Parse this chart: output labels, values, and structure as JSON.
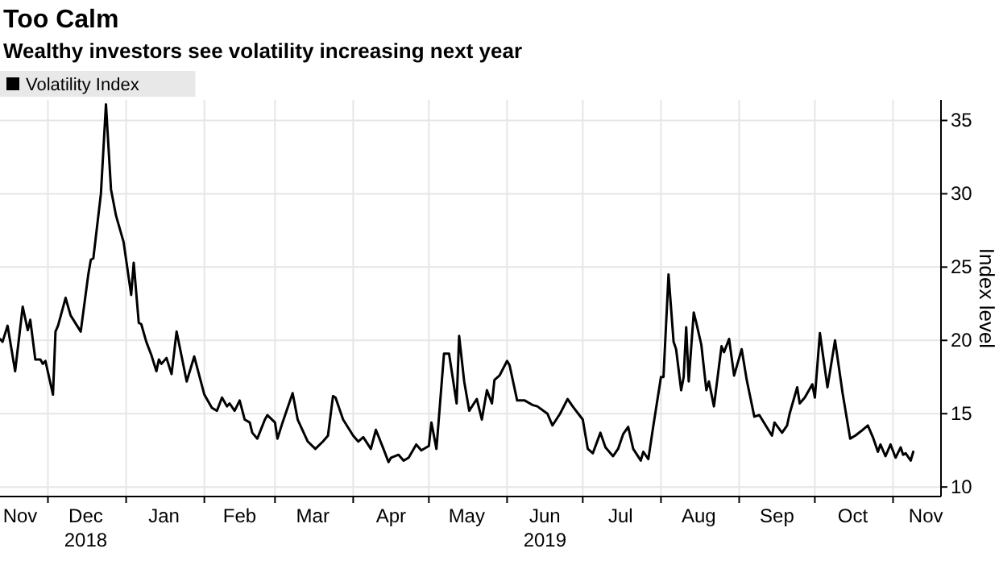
{
  "chart_data": {
    "type": "line",
    "title": "Too Calm",
    "subtitle": "Wealthy investors see volatility increasing next year",
    "ylabel": "Index level",
    "legend": "top left",
    "grid": true,
    "line_style": "solid",
    "xlim": [
      "2018-11-12",
      "2019-11-20"
    ],
    "ylim": [
      9.35,
      36.4
    ],
    "yticks": [
      10,
      15,
      20,
      25,
      30,
      35
    ],
    "xticks": [
      {
        "value": "2018-11-20",
        "label": "Nov"
      },
      {
        "value": "2018-12-01",
        "label": null
      },
      {
        "value": "2018-12-16",
        "label": "Dec\n2018"
      },
      {
        "value": "2019-01-01",
        "label": null
      },
      {
        "value": "2019-01-16",
        "label": "Jan"
      },
      {
        "value": "2019-02-01",
        "label": null
      },
      {
        "value": "2019-02-15",
        "label": "Feb"
      },
      {
        "value": "2019-03-01",
        "label": null
      },
      {
        "value": "2019-03-16",
        "label": "Mar"
      },
      {
        "value": "2019-04-01",
        "label": null
      },
      {
        "value": "2019-04-16",
        "label": "Apr"
      },
      {
        "value": "2019-05-01",
        "label": null
      },
      {
        "value": "2019-05-16",
        "label": "May"
      },
      {
        "value": "2019-06-01",
        "label": null
      },
      {
        "value": "2019-06-16",
        "label": "Jun\n2019"
      },
      {
        "value": "2019-07-01",
        "label": null
      },
      {
        "value": "2019-07-16",
        "label": "Jul"
      },
      {
        "value": "2019-08-01",
        "label": null
      },
      {
        "value": "2019-08-16",
        "label": "Aug"
      },
      {
        "value": "2019-09-01",
        "label": null
      },
      {
        "value": "2019-09-16",
        "label": "Sep"
      },
      {
        "value": "2019-10-01",
        "label": null
      },
      {
        "value": "2019-10-16",
        "label": "Oct"
      },
      {
        "value": "2019-11-01",
        "label": null
      },
      {
        "value": "2019-11-14",
        "label": "Nov"
      }
    ],
    "x": [
      "2018-11-12",
      "2018-11-13",
      "2018-11-15",
      "2018-11-18",
      "2018-11-21",
      "2018-11-23",
      "2018-11-24",
      "2018-11-26",
      "2018-11-28",
      "2018-11-29",
      "2018-11-30",
      "2018-12-03",
      "2018-12-04",
      "2018-12-05",
      "2018-12-08",
      "2018-12-10",
      "2018-12-14",
      "2018-12-17",
      "2018-12-18",
      "2018-12-19",
      "2018-12-22",
      "2018-12-24",
      "2018-12-26",
      "2018-12-28",
      "2018-12-31",
      "2019-01-03",
      "2019-01-04",
      "2019-01-06",
      "2019-01-07",
      "2019-01-09",
      "2019-01-11",
      "2019-01-13",
      "2019-01-14",
      "2019-01-15",
      "2019-01-17",
      "2019-01-19",
      "2019-01-21",
      "2019-01-23",
      "2019-01-25",
      "2019-01-28",
      "2019-02-01",
      "2019-02-04",
      "2019-02-06",
      "2019-02-08",
      "2019-02-10",
      "2019-02-11",
      "2019-02-13",
      "2019-02-15",
      "2019-02-17",
      "2019-02-19",
      "2019-02-20",
      "2019-02-22",
      "2019-02-25",
      "2019-02-26",
      "2019-03-01",
      "2019-03-02",
      "2019-03-04",
      "2019-03-08",
      "2019-03-10",
      "2019-03-14",
      "2019-03-17",
      "2019-03-20",
      "2019-03-22",
      "2019-03-24",
      "2019-03-25",
      "2019-03-28",
      "2019-04-01",
      "2019-04-03",
      "2019-04-05",
      "2019-04-08",
      "2019-04-10",
      "2019-04-13",
      "2019-04-15",
      "2019-04-16",
      "2019-04-19",
      "2019-04-21",
      "2019-04-23",
      "2019-04-26",
      "2019-04-28",
      "2019-05-01",
      "2019-05-02",
      "2019-05-04",
      "2019-05-07",
      "2019-05-09",
      "2019-05-12",
      "2019-05-13",
      "2019-05-15",
      "2019-05-17",
      "2019-05-20",
      "2019-05-22",
      "2019-05-24",
      "2019-05-26",
      "2019-05-27",
      "2019-05-29",
      "2019-06-01",
      "2019-06-02",
      "2019-06-05",
      "2019-06-08",
      "2019-06-11",
      "2019-06-13",
      "2019-06-17",
      "2019-06-19",
      "2019-06-22",
      "2019-06-25",
      "2019-06-27",
      "2019-07-01",
      "2019-07-03",
      "2019-07-05",
      "2019-07-08",
      "2019-07-10",
      "2019-07-13",
      "2019-07-15",
      "2019-07-17",
      "2019-07-19",
      "2019-07-21",
      "2019-07-24",
      "2019-07-25",
      "2019-07-27",
      "2019-07-29",
      "2019-08-01",
      "2019-08-02",
      "2019-08-04",
      "2019-08-06",
      "2019-08-07",
      "2019-08-09",
      "2019-08-10",
      "2019-08-11",
      "2019-08-12",
      "2019-08-14",
      "2019-08-15",
      "2019-08-17",
      "2019-08-19",
      "2019-08-20",
      "2019-08-22",
      "2019-08-25",
      "2019-08-26",
      "2019-08-28",
      "2019-08-30",
      "2019-09-02",
      "2019-09-04",
      "2019-09-07",
      "2019-09-09",
      "2019-09-14",
      "2019-09-15",
      "2019-09-18",
      "2019-09-20",
      "2019-09-21",
      "2019-09-24",
      "2019-09-25",
      "2019-09-27",
      "2019-09-30",
      "2019-10-01",
      "2019-10-03",
      "2019-10-06",
      "2019-10-09",
      "2019-10-12",
      "2019-10-15",
      "2019-10-17",
      "2019-10-20",
      "2019-10-22",
      "2019-10-24",
      "2019-10-26",
      "2019-10-27",
      "2019-10-29",
      "2019-10-31",
      "2019-11-02",
      "2019-11-04",
      "2019-11-05",
      "2019-11-06",
      "2019-11-08",
      "2019-11-09"
    ],
    "series": [
      {
        "name": "Volatility Index",
        "color": "#000000",
        "values": [
          20.1,
          19.9,
          21.0,
          17.9,
          22.3,
          20.7,
          21.4,
          18.7,
          18.7,
          18.4,
          18.6,
          16.3,
          20.6,
          21.0,
          22.9,
          21.7,
          20.6,
          24.5,
          25.5,
          25.6,
          30.0,
          36.1,
          30.3,
          28.5,
          26.7,
          23.1,
          25.3,
          21.2,
          21.1,
          19.9,
          19.0,
          17.9,
          18.7,
          18.4,
          18.8,
          17.7,
          20.6,
          18.9,
          17.2,
          18.9,
          16.3,
          15.4,
          15.2,
          16.1,
          15.5,
          15.7,
          15.2,
          15.9,
          14.6,
          14.4,
          13.7,
          13.3,
          14.6,
          14.9,
          14.4,
          13.3,
          14.4,
          16.4,
          14.6,
          13.1,
          12.6,
          13.1,
          13.5,
          16.2,
          16.1,
          14.6,
          13.5,
          13.1,
          13.4,
          12.6,
          13.9,
          12.6,
          11.7,
          12.0,
          12.2,
          11.8,
          12.0,
          12.9,
          12.5,
          12.8,
          14.4,
          12.6,
          19.1,
          19.1,
          15.7,
          20.3,
          17.2,
          15.2,
          16.0,
          14.6,
          16.6,
          15.7,
          17.3,
          17.6,
          18.6,
          18.3,
          15.9,
          15.9,
          15.6,
          15.5,
          15.0,
          14.2,
          15.0,
          16.0,
          15.5,
          14.6,
          12.6,
          12.3,
          13.7,
          12.7,
          12.1,
          12.6,
          13.6,
          14.1,
          12.6,
          11.8,
          12.4,
          11.9,
          14.2,
          17.5,
          17.5,
          24.5,
          19.9,
          19.4,
          16.6,
          17.5,
          20.9,
          17.2,
          21.9,
          21.2,
          19.7,
          16.6,
          17.2,
          15.5,
          19.6,
          19.2,
          20.1,
          17.6,
          19.4,
          17.3,
          14.8,
          14.9,
          13.5,
          14.4,
          13.7,
          14.2,
          15.0,
          16.8,
          15.7,
          16.1,
          17.0,
          16.1,
          20.5,
          16.8,
          20.0,
          16.4,
          13.3,
          13.5,
          13.9,
          14.2,
          13.4,
          12.4,
          12.9,
          12.1,
          12.9,
          12.0,
          12.7,
          12.2,
          12.3,
          11.8,
          12.4
        ]
      }
    ]
  }
}
